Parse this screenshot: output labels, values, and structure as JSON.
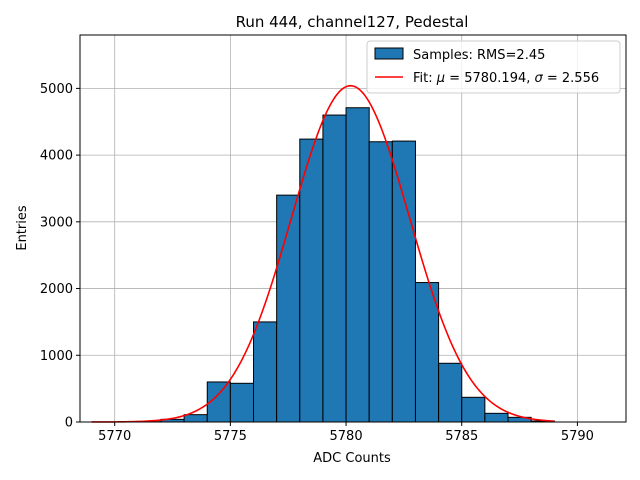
{
  "chart_data": {
    "type": "bar",
    "title": "Run 444, channel127, Pedestal",
    "xlabel": "ADC Counts",
    "ylabel": "Entries",
    "xlim": [
      5768.5,
      5792.1
    ],
    "ylim": [
      0,
      5800
    ],
    "xticks": [
      5770,
      5775,
      5780,
      5785,
      5790
    ],
    "yticks": [
      0,
      1000,
      2000,
      3000,
      4000,
      5000
    ],
    "grid": true,
    "legend_position": "top-right",
    "histogram": {
      "name": "Samples: RMS=2.45",
      "color": "#1f77b4",
      "edgecolor": "#000000",
      "bins": [
        {
          "x0": 5771,
          "x1": 5772,
          "count": 5
        },
        {
          "x0": 5772,
          "x1": 5773,
          "count": 40
        },
        {
          "x0": 5773,
          "x1": 5774,
          "count": 110
        },
        {
          "x0": 5774,
          "x1": 5775,
          "count": 600
        },
        {
          "x0": 5775,
          "x1": 5776,
          "count": 580
        },
        {
          "x0": 5776,
          "x1": 5777,
          "count": 1500
        },
        {
          "x0": 5777,
          "x1": 5778,
          "count": 3400
        },
        {
          "x0": 5778,
          "x1": 5779,
          "count": 4240
        },
        {
          "x0": 5779,
          "x1": 5780,
          "count": 4600
        },
        {
          "x0": 5780,
          "x1": 5781,
          "count": 4710
        },
        {
          "x0": 5781,
          "x1": 5782,
          "count": 4200
        },
        {
          "x0": 5782,
          "x1": 5783,
          "count": 4210
        },
        {
          "x0": 5783,
          "x1": 5784,
          "count": 2090
        },
        {
          "x0": 5784,
          "x1": 5785,
          "count": 880
        },
        {
          "x0": 5785,
          "x1": 5786,
          "count": 370
        },
        {
          "x0": 5786,
          "x1": 5787,
          "count": 130
        },
        {
          "x0": 5787,
          "x1": 5788,
          "count": 70
        },
        {
          "x0": 5788,
          "x1": 5789,
          "count": 15
        }
      ]
    },
    "fit": {
      "name": "Fit: μ = 5780.194, σ = 2.556",
      "legend_prefix": "Fit: ",
      "legend_mu_symbol": "μ",
      "legend_mu_text": " = 5780.194, ",
      "legend_sigma_symbol": "σ",
      "legend_sigma_text": " = 2.556",
      "color": "#ff0000",
      "mu": 5780.194,
      "sigma": 2.556,
      "amplitude": 5040,
      "x_range": [
        5769,
        5789
      ]
    }
  }
}
